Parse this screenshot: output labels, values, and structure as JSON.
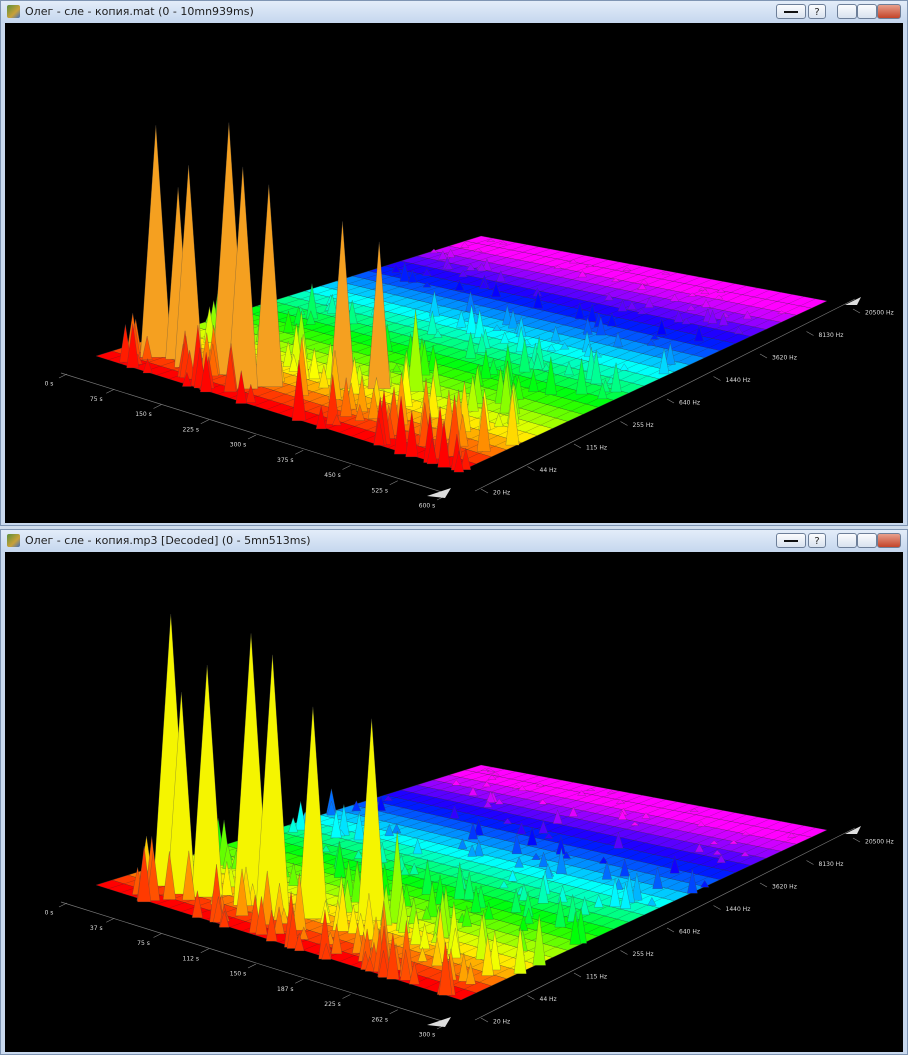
{
  "windows": [
    {
      "title": "Олег - сле - копия.mat (0 - 10mn939ms)",
      "help_button": "?",
      "time_labels": [
        "0 s",
        "75 s",
        "150 s",
        "225 s",
        "300 s",
        "375 s",
        "450 s",
        "525 s",
        "600 s"
      ],
      "freq_labels": [
        "20 Hz",
        "44 Hz",
        "115 Hz",
        "255 Hz",
        "640 Hz",
        "1440 Hz",
        "3620 Hz",
        "8130 Hz",
        "20500 Hz"
      ]
    },
    {
      "title": "Олег - сле - копия.mp3 [Decoded] (0 - 5mn513ms)",
      "help_button": "?",
      "time_labels": [
        "0 s",
        "37 s",
        "75 s",
        "112 s",
        "150 s",
        "187 s",
        "225 s",
        "262 s",
        "300 s"
      ],
      "freq_labels": [
        "20 Hz",
        "44 Hz",
        "115 Hz",
        "255 Hz",
        "640 Hz",
        "1440 Hz",
        "3620 Hz",
        "8130 Hz",
        "20500 Hz"
      ]
    }
  ]
}
